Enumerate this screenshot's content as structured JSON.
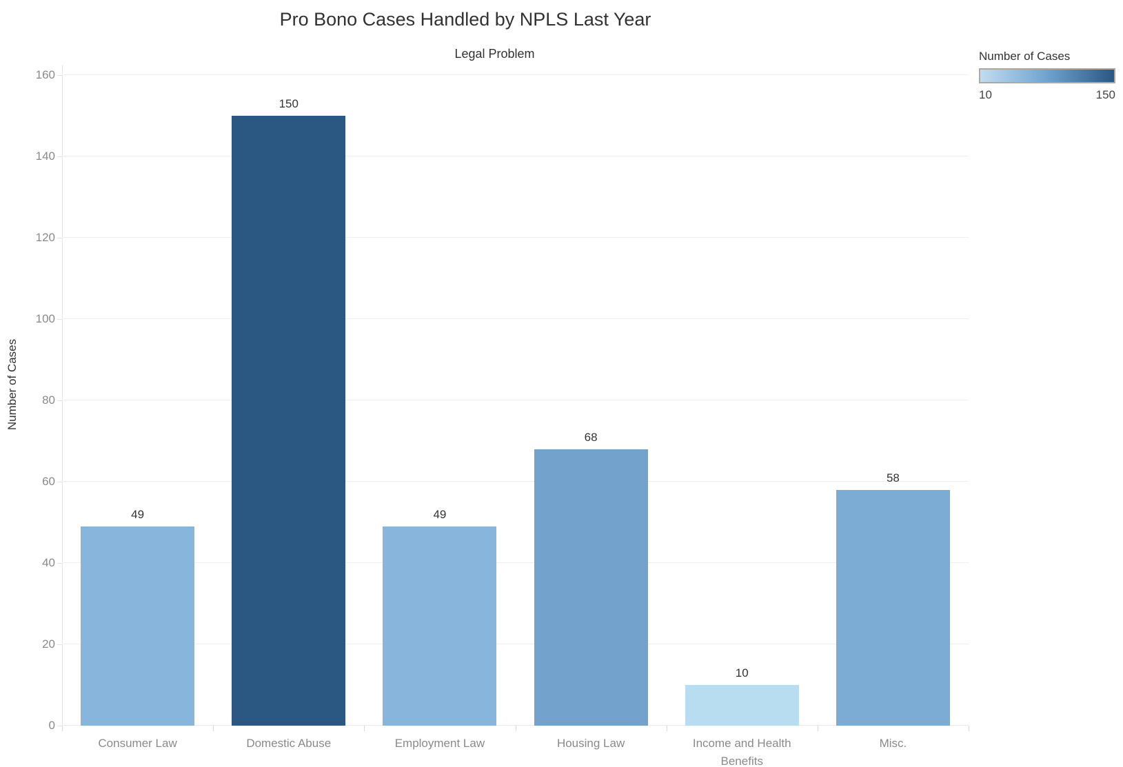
{
  "title": "Pro Bono Cases Handled by NPLS Last Year",
  "x_axis_title": "Legal Problem",
  "y_axis_title": "Number of Cases",
  "legend": {
    "title": "Number of Cases",
    "min_label": "10",
    "max_label": "150",
    "gradient_start_color": "#c2dcf0",
    "gradient_end_color": "#2a5783"
  },
  "chart_data": {
    "type": "bar",
    "title": "Pro Bono Cases Handled by NPLS Last Year",
    "xlabel": "Legal Problem",
    "ylabel": "Number of Cases",
    "categories": [
      "Consumer Law",
      "Domestic Abuse",
      "Employment Law",
      "Housing Law",
      "Income and Health Benefits",
      "Misc."
    ],
    "values": [
      49,
      150,
      49,
      68,
      10,
      58
    ],
    "bar_colors": [
      "#88b5dc",
      "#2b5783",
      "#88b5dc",
      "#73a3cc",
      "#b9ddf0",
      "#7cabd3"
    ],
    "y_ticks": [
      0,
      20,
      40,
      60,
      80,
      100,
      120,
      140,
      160
    ],
    "ylim": [
      0,
      160
    ],
    "grid": "horizontal-light",
    "legend_position": "top-right",
    "color_encoding": "sequential-blue-by-value",
    "color_domain": [
      10,
      150
    ]
  }
}
